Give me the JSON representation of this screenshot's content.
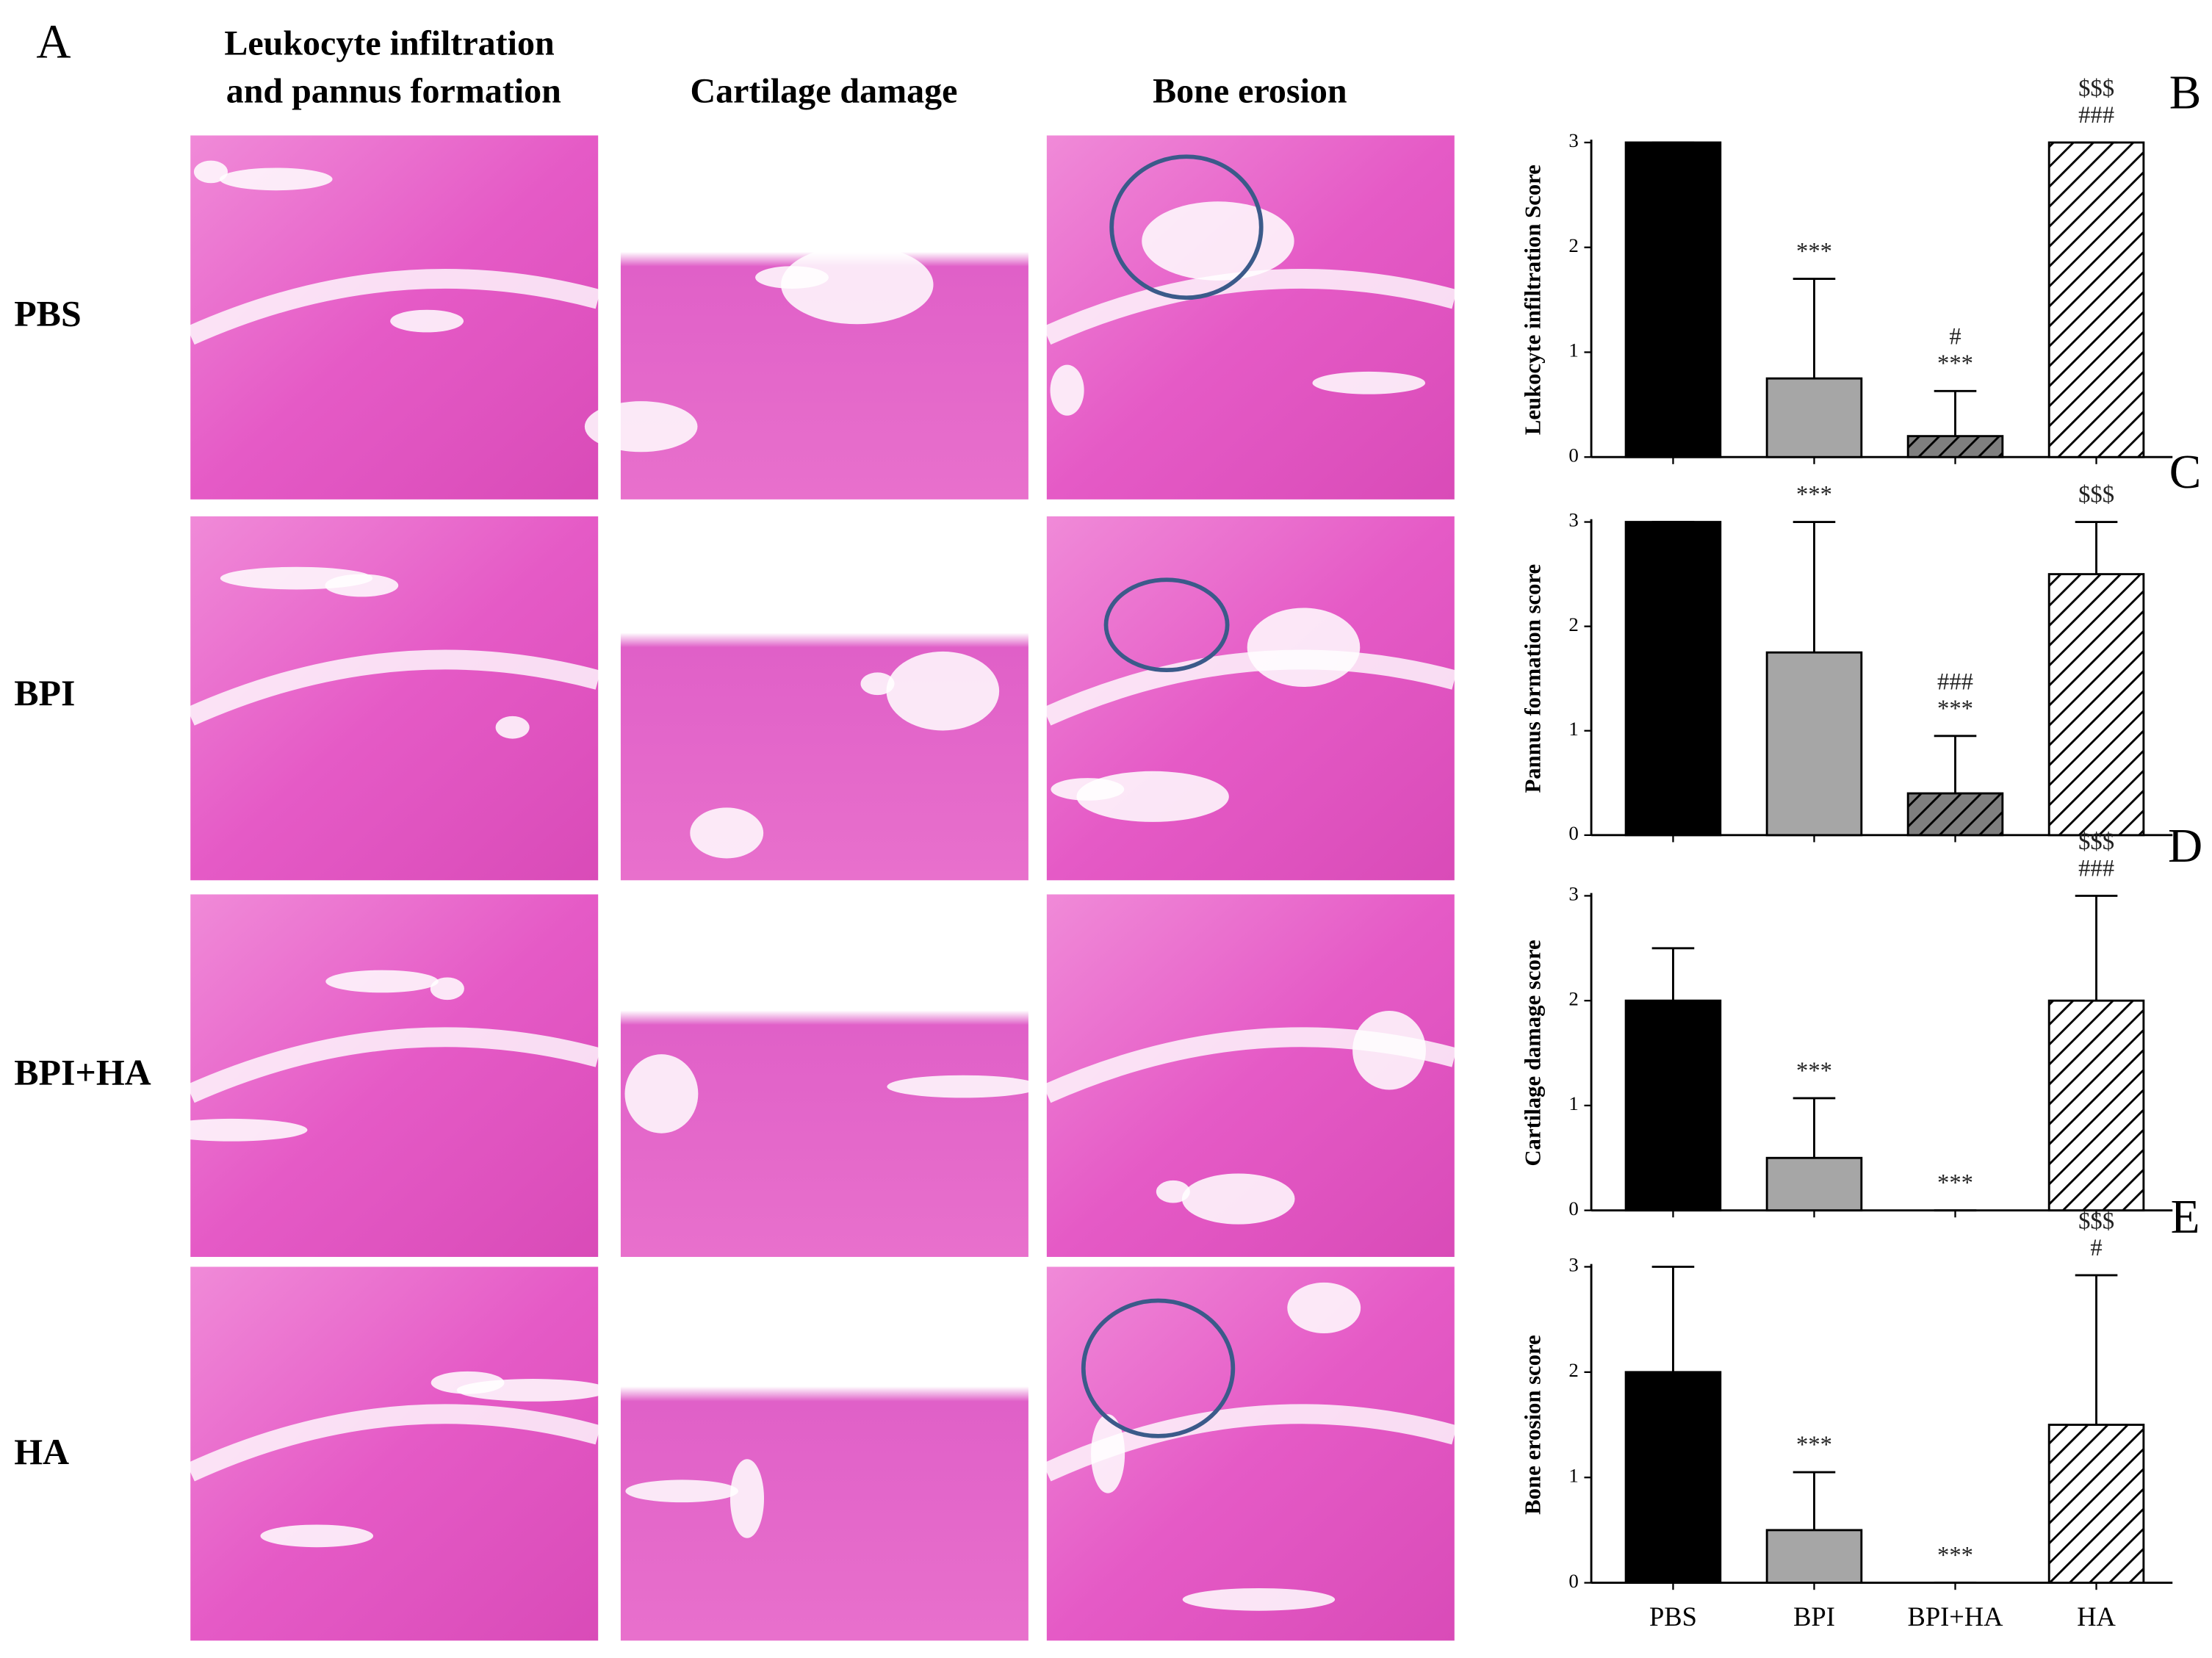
{
  "panel_a": {
    "label": "A",
    "column_headers": [
      [
        "Leukocyte infiltration",
        "and pannus formation"
      ],
      [
        "Cartilage damage"
      ],
      [
        "Bone erosion"
      ]
    ],
    "row_labels": [
      "PBS",
      "BPI",
      "BPI+HA",
      "HA"
    ]
  },
  "chart_data": [
    {
      "type": "bar",
      "panel": "B",
      "ylabel": "Leukocyte infiltration Score",
      "values": [
        3,
        0.75,
        0.2,
        3
      ],
      "errors": [
        0,
        0.95,
        0.43,
        0
      ],
      "annotations": [
        null,
        [
          "***"
        ],
        [
          "#",
          "***"
        ],
        [
          "$$$",
          "###"
        ]
      ],
      "colors": [
        "#000000",
        "#a6a6a6",
        "#7f7f7f",
        "#ffffff"
      ],
      "hatch": [
        false,
        false,
        true,
        true
      ],
      "ylim": [
        0,
        3
      ],
      "yticks": [
        0,
        1,
        2,
        3
      ]
    },
    {
      "type": "bar",
      "panel": "C",
      "ylabel": "Pannus formation score",
      "values": [
        3,
        1.75,
        0.4,
        2.5
      ],
      "errors": [
        0,
        1.25,
        0.55,
        0.5
      ],
      "annotations": [
        null,
        [
          "***"
        ],
        [
          "###",
          "***"
        ],
        [
          "$$$"
        ]
      ],
      "colors": [
        "#000000",
        "#a6a6a6",
        "#7f7f7f",
        "#ffffff"
      ],
      "hatch": [
        false,
        false,
        true,
        true
      ],
      "ylim": [
        0,
        3
      ],
      "yticks": [
        0,
        1,
        2,
        3
      ]
    },
    {
      "type": "bar",
      "panel": "D",
      "ylabel": "Cartilage damage score",
      "values": [
        2,
        0.5,
        0,
        2
      ],
      "errors": [
        0.5,
        0.57,
        0,
        1
      ],
      "annotations": [
        null,
        [
          "***"
        ],
        [
          "***"
        ],
        [
          "$$$",
          "###"
        ]
      ],
      "colors": [
        "#000000",
        "#a6a6a6",
        "#7f7f7f",
        "#ffffff"
      ],
      "hatch": [
        false,
        false,
        true,
        true
      ],
      "ylim": [
        0,
        3
      ],
      "yticks": [
        0,
        1,
        2,
        3
      ]
    },
    {
      "type": "bar",
      "panel": "E",
      "ylabel": "Bone erosion score",
      "categories": [
        "PBS",
        "BPI",
        "BPI+HA",
        "HA"
      ],
      "values": [
        2,
        0.5,
        0,
        1.5
      ],
      "errors": [
        1,
        0.55,
        0,
        1.42
      ],
      "annotations": [
        null,
        [
          "***"
        ],
        [
          "***"
        ],
        [
          "$$$",
          "#"
        ]
      ],
      "colors": [
        "#000000",
        "#a6a6a6",
        "#7f7f7f",
        "#ffffff"
      ],
      "hatch": [
        false,
        false,
        true,
        true
      ],
      "ylim": [
        0,
        3
      ],
      "yticks": [
        0,
        1,
        2,
        3
      ]
    }
  ]
}
